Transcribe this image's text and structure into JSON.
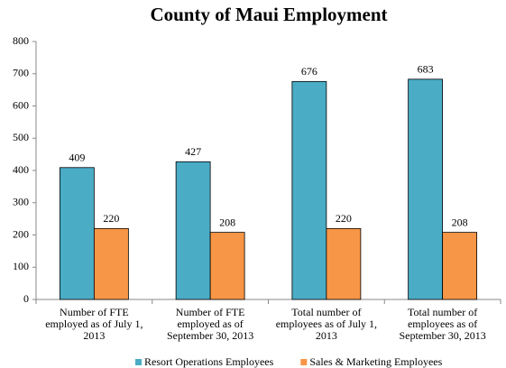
{
  "chart_data": {
    "type": "bar",
    "title": "County of Maui Employment",
    "categories": [
      "Number of FTE employed as of July 1, 2013",
      "Number of FTE employed as of September 30, 2013",
      "Total number of employees as of July 1, 2013",
      "Total number of employees as of September 30, 2013"
    ],
    "series": [
      {
        "name": "Resort Operations Employees",
        "color": "#4bacc6",
        "values": [
          409,
          427,
          676,
          683
        ]
      },
      {
        "name": "Sales & Marketing Employees",
        "color": "#f79646",
        "values": [
          220,
          208,
          220,
          208
        ]
      }
    ],
    "ylim": [
      0,
      800
    ],
    "yticks": [
      0,
      100,
      200,
      300,
      400,
      500,
      600,
      700,
      800
    ],
    "grid": false,
    "legend": "bottom"
  }
}
